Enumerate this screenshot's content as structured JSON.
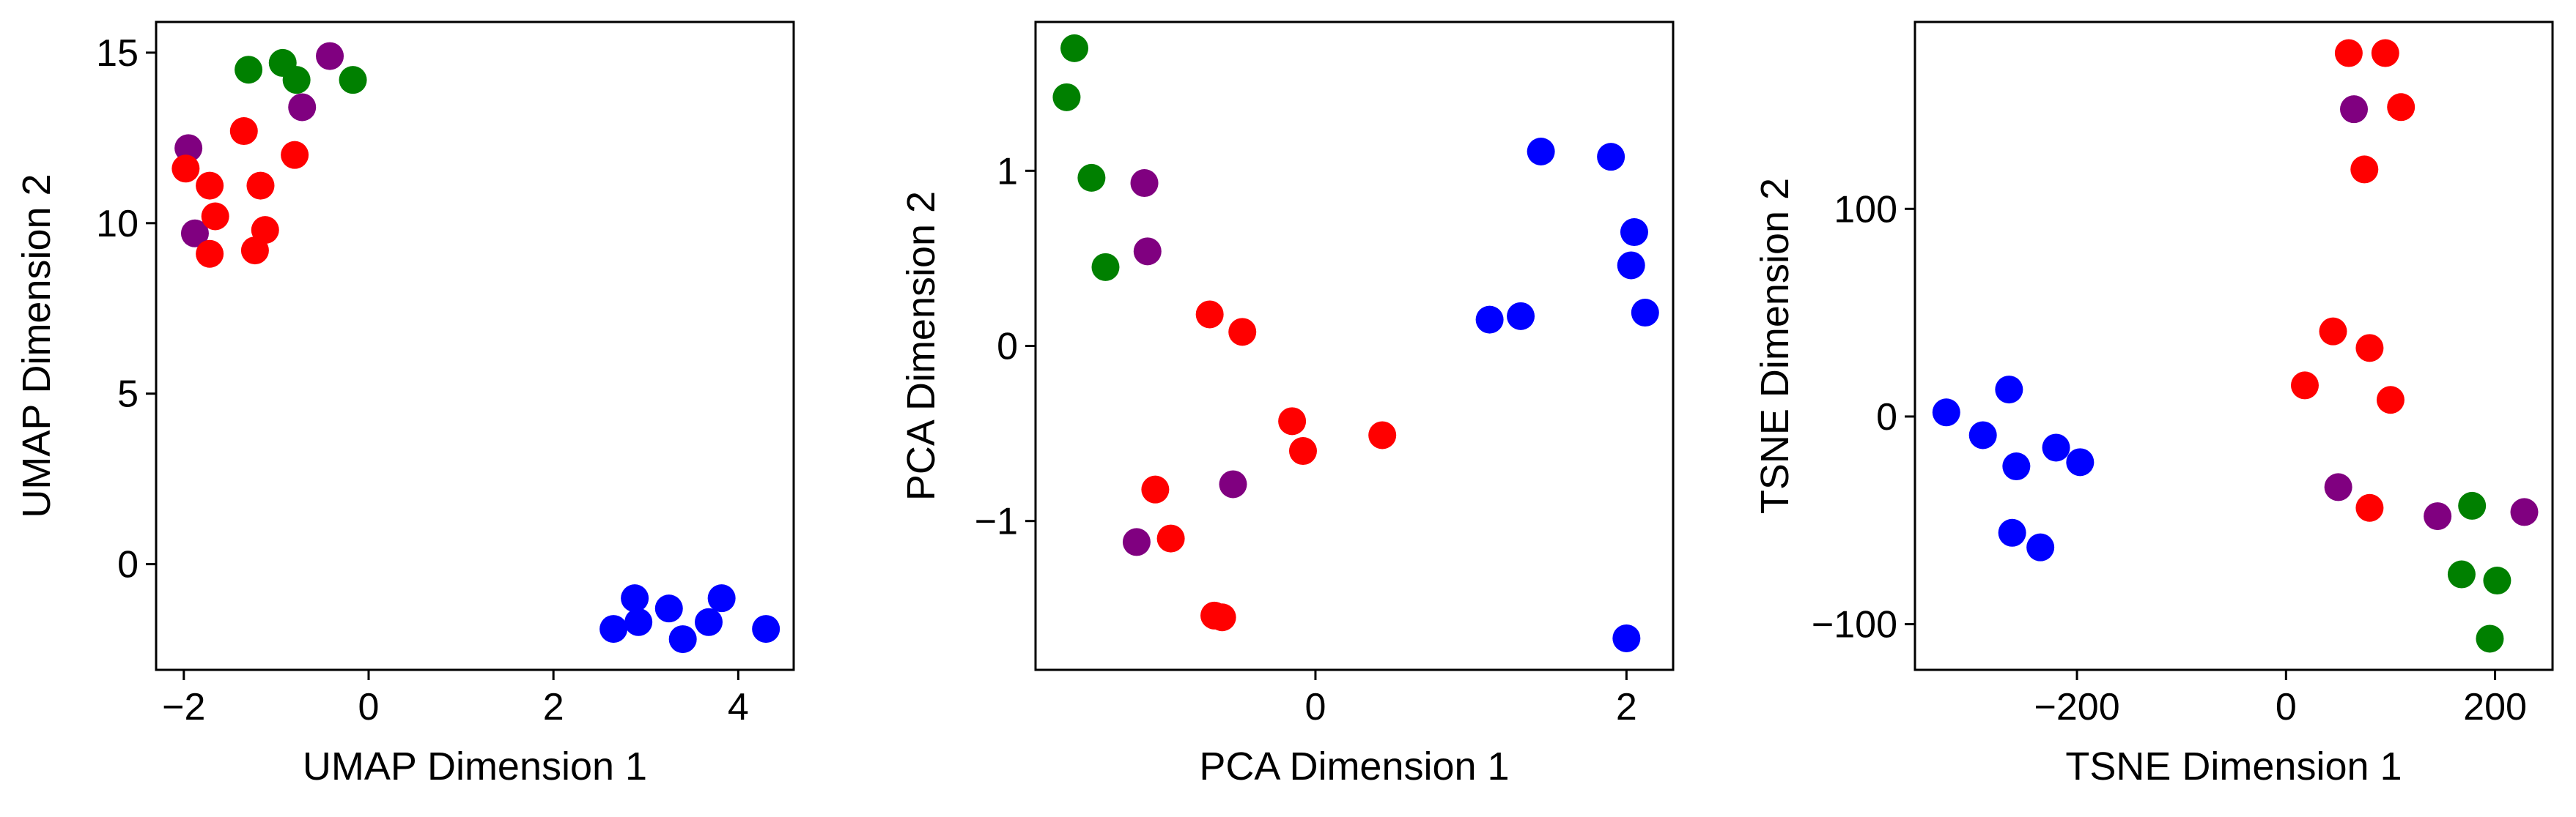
{
  "colors": {
    "red": "#ff0000",
    "green": "#008000",
    "purple": "#800080",
    "blue": "#0000ff"
  },
  "chart_data": [
    {
      "type": "scatter",
      "xlabel": "UMAP Dimension 1",
      "ylabel": "UMAP Dimension 2",
      "xlim": [
        -2.3,
        4.6
      ],
      "ylim": [
        -3.1,
        15.9
      ],
      "xticks": [
        -2,
        0,
        2,
        4
      ],
      "yticks": [
        0,
        5,
        10,
        15
      ],
      "xtick_labels": [
        "−2",
        "0",
        "2",
        "4"
      ],
      "ytick_labels": [
        "0",
        "5",
        "10",
        "15"
      ],
      "grid": false,
      "points": [
        {
          "x": -1.95,
          "y": 12.2,
          "c": "purple"
        },
        {
          "x": -1.88,
          "y": 9.7,
          "c": "purple"
        },
        {
          "x": -0.72,
          "y": 13.4,
          "c": "purple"
        },
        {
          "x": -0.42,
          "y": 14.9,
          "c": "purple"
        },
        {
          "x": -1.3,
          "y": 14.5,
          "c": "green"
        },
        {
          "x": -0.93,
          "y": 14.7,
          "c": "green"
        },
        {
          "x": -0.78,
          "y": 14.2,
          "c": "green"
        },
        {
          "x": -0.17,
          "y": 14.2,
          "c": "green"
        },
        {
          "x": -1.98,
          "y": 11.6,
          "c": "red"
        },
        {
          "x": -1.72,
          "y": 11.1,
          "c": "red"
        },
        {
          "x": -1.66,
          "y": 10.2,
          "c": "red"
        },
        {
          "x": -1.72,
          "y": 9.1,
          "c": "red"
        },
        {
          "x": -1.35,
          "y": 12.7,
          "c": "red"
        },
        {
          "x": -1.17,
          "y": 11.1,
          "c": "red"
        },
        {
          "x": -1.12,
          "y": 9.8,
          "c": "red"
        },
        {
          "x": -1.23,
          "y": 9.2,
          "c": "red"
        },
        {
          "x": -0.8,
          "y": 12.0,
          "c": "red"
        },
        {
          "x": 2.65,
          "y": -1.9,
          "c": "blue"
        },
        {
          "x": 2.88,
          "y": -1.0,
          "c": "blue"
        },
        {
          "x": 2.92,
          "y": -1.7,
          "c": "blue"
        },
        {
          "x": 3.25,
          "y": -1.3,
          "c": "blue"
        },
        {
          "x": 3.4,
          "y": -2.2,
          "c": "blue"
        },
        {
          "x": 3.68,
          "y": -1.7,
          "c": "blue"
        },
        {
          "x": 3.82,
          "y": -1.0,
          "c": "blue"
        },
        {
          "x": 4.3,
          "y": -1.9,
          "c": "blue"
        }
      ]
    },
    {
      "type": "scatter",
      "xlabel": "PCA Dimension 1",
      "ylabel": "PCA Dimension 2",
      "xlim": [
        -1.8,
        2.3
      ],
      "ylim": [
        -1.85,
        1.85
      ],
      "xticks": [
        0,
        2
      ],
      "yticks": [
        -1,
        0,
        1
      ],
      "xtick_labels": [
        "0",
        "2"
      ],
      "ytick_labels": [
        "−1",
        "0",
        "1"
      ],
      "grid": false,
      "points": [
        {
          "x": -1.55,
          "y": 1.7,
          "c": "green"
        },
        {
          "x": -1.6,
          "y": 1.42,
          "c": "green"
        },
        {
          "x": -1.44,
          "y": 0.96,
          "c": "green"
        },
        {
          "x": -1.35,
          "y": 0.45,
          "c": "green"
        },
        {
          "x": -1.1,
          "y": 0.93,
          "c": "purple"
        },
        {
          "x": -1.08,
          "y": 0.54,
          "c": "purple"
        },
        {
          "x": -0.53,
          "y": -0.79,
          "c": "purple"
        },
        {
          "x": -1.15,
          "y": -1.12,
          "c": "purple"
        },
        {
          "x": -0.68,
          "y": 0.18,
          "c": "red"
        },
        {
          "x": -0.47,
          "y": 0.08,
          "c": "red"
        },
        {
          "x": -0.15,
          "y": -0.43,
          "c": "red"
        },
        {
          "x": -0.08,
          "y": -0.6,
          "c": "red"
        },
        {
          "x": 0.43,
          "y": -0.51,
          "c": "red"
        },
        {
          "x": -1.03,
          "y": -0.82,
          "c": "red"
        },
        {
          "x": -0.93,
          "y": -1.1,
          "c": "red"
        },
        {
          "x": -0.65,
          "y": -1.54,
          "c": "red"
        },
        {
          "x": -0.6,
          "y": -1.55,
          "c": "red"
        },
        {
          "x": 1.12,
          "y": 0.15,
          "c": "blue"
        },
        {
          "x": 1.32,
          "y": 0.17,
          "c": "blue"
        },
        {
          "x": 1.45,
          "y": 1.11,
          "c": "blue"
        },
        {
          "x": 1.9,
          "y": 1.08,
          "c": "blue"
        },
        {
          "x": 2.05,
          "y": 0.65,
          "c": "blue"
        },
        {
          "x": 2.03,
          "y": 0.46,
          "c": "blue"
        },
        {
          "x": 2.12,
          "y": 0.19,
          "c": "blue"
        },
        {
          "x": 2.0,
          "y": -1.67,
          "c": "blue"
        }
      ]
    },
    {
      "type": "scatter",
      "xlabel": "TSNE Dimension 1",
      "ylabel": "TSNE Dimension 2",
      "xlim": [
        -355,
        255
      ],
      "ylim": [
        -122,
        190
      ],
      "xticks": [
        -200,
        0,
        200
      ],
      "yticks": [
        -100,
        0,
        100
      ],
      "xtick_labels": [
        "−200",
        "0",
        "200"
      ],
      "ytick_labels": [
        "−100",
        "0",
        "100"
      ],
      "grid": false,
      "points": [
        {
          "x": -325,
          "y": 2,
          "c": "blue"
        },
        {
          "x": -290,
          "y": -9,
          "c": "blue"
        },
        {
          "x": -265,
          "y": 13,
          "c": "blue"
        },
        {
          "x": -258,
          "y": -24,
          "c": "blue"
        },
        {
          "x": -262,
          "y": -56,
          "c": "blue"
        },
        {
          "x": -235,
          "y": -63,
          "c": "blue"
        },
        {
          "x": -220,
          "y": -15,
          "c": "blue"
        },
        {
          "x": -197,
          "y": -22,
          "c": "blue"
        },
        {
          "x": 60,
          "y": 175,
          "c": "red"
        },
        {
          "x": 95,
          "y": 175,
          "c": "red"
        },
        {
          "x": 110,
          "y": 149,
          "c": "red"
        },
        {
          "x": 75,
          "y": 119,
          "c": "red"
        },
        {
          "x": 65,
          "y": 148,
          "c": "purple"
        },
        {
          "x": 45,
          "y": 41,
          "c": "red"
        },
        {
          "x": 80,
          "y": 33,
          "c": "red"
        },
        {
          "x": 18,
          "y": 15,
          "c": "red"
        },
        {
          "x": 100,
          "y": 8,
          "c": "red"
        },
        {
          "x": 80,
          "y": -44,
          "c": "red"
        },
        {
          "x": 50,
          "y": -34,
          "c": "purple"
        },
        {
          "x": 145,
          "y": -48,
          "c": "purple"
        },
        {
          "x": 228,
          "y": -46,
          "c": "purple"
        },
        {
          "x": 178,
          "y": -43,
          "c": "green"
        },
        {
          "x": 168,
          "y": -76,
          "c": "green"
        },
        {
          "x": 202,
          "y": -79,
          "c": "green"
        },
        {
          "x": 195,
          "y": -107,
          "c": "green"
        }
      ]
    }
  ]
}
